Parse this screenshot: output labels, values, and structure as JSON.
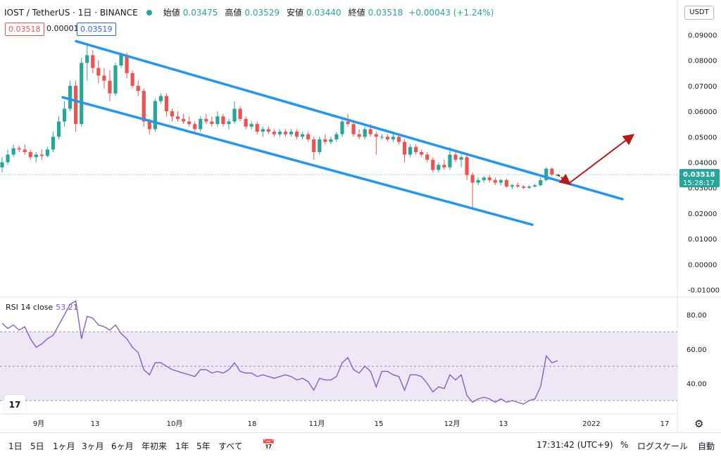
{
  "header": {
    "symbol": "IOST / TetherUS · 1日 · BINANCE",
    "open_label": "始値",
    "open_value": "0.03475",
    "high_label": "高値",
    "high_value": "0.03529",
    "low_label": "安値",
    "low_value": "0.03440",
    "close_label": "終値",
    "close_value": "0.03518",
    "change": "+0.00043 (+1.24%)",
    "sell_price": "0.03518",
    "spread": "0.00001",
    "buy_price": "0.03519"
  },
  "price_axis": {
    "currency": "USDT",
    "top_label": "0",
    "last_price_label": "0.03518",
    "countdown": "15:28:17"
  },
  "rsi": {
    "label": "RSI 14 close",
    "value": "53.21"
  },
  "colors": {
    "up": "#26a69a",
    "down": "#ef5350",
    "channel": "#2196f3",
    "arrow": "#b71c1c",
    "rsi_line": "#7e57c2",
    "rsi_band": "#ede7f6"
  },
  "bottom_bar": {
    "ranges": [
      "1日",
      "5日",
      "1ヶ月",
      "3ヶ月",
      "6ヶ月",
      "年初来",
      "1年",
      "5年",
      "すべて"
    ],
    "time": "17:31:42 (UTC+9)",
    "percent": "%",
    "log_scale": "ログスケール",
    "auto": "自動"
  },
  "chart_data": [
    {
      "type": "candlestick",
      "title": "IOST / TetherUS · 1日 · BINANCE",
      "x_axis_ticks": [
        "9月",
        "13",
        "10月",
        "18",
        "11月",
        "15",
        "12月",
        "13",
        "2022",
        "17"
      ],
      "y_axis_ticks": [
        0.09,
        0.08,
        0.07,
        0.06,
        0.05,
        0.04,
        0.03,
        0.02,
        0.01,
        0.0,
        -0.01
      ],
      "y_axis_tick_labels": [
        "0.09000",
        "0.08000",
        "0.07000",
        "0.06000",
        "0.05000",
        "0.04000",
        "0.03000",
        "0.02000",
        "0.01000",
        "0.00000",
        "-0.01000"
      ],
      "ylim": [
        -0.012,
        0.1
      ],
      "last_price": 0.03518,
      "ohlc": [
        [
          0.038,
          0.042,
          0.036,
          0.04
        ],
        [
          0.04,
          0.045,
          0.039,
          0.043
        ],
        [
          0.043,
          0.047,
          0.042,
          0.0455
        ],
        [
          0.0455,
          0.0465,
          0.044,
          0.045
        ],
        [
          0.045,
          0.047,
          0.043,
          0.044
        ],
        [
          0.044,
          0.045,
          0.041,
          0.042
        ],
        [
          0.042,
          0.044,
          0.04,
          0.043
        ],
        [
          0.043,
          0.045,
          0.041,
          0.0425
        ],
        [
          0.0425,
          0.046,
          0.042,
          0.045
        ],
        [
          0.045,
          0.052,
          0.044,
          0.05
        ],
        [
          0.05,
          0.058,
          0.049,
          0.056
        ],
        [
          0.056,
          0.064,
          0.054,
          0.061
        ],
        [
          0.061,
          0.072,
          0.06,
          0.07
        ],
        [
          0.07,
          0.072,
          0.052,
          0.055
        ],
        [
          0.055,
          0.081,
          0.054,
          0.079
        ],
        [
          0.079,
          0.086,
          0.072,
          0.082
        ],
        [
          0.082,
          0.084,
          0.075,
          0.077
        ],
        [
          0.077,
          0.08,
          0.071,
          0.074
        ],
        [
          0.074,
          0.077,
          0.069,
          0.072
        ],
        [
          0.072,
          0.076,
          0.064,
          0.067
        ],
        [
          0.067,
          0.079,
          0.066,
          0.078
        ],
        [
          0.078,
          0.083,
          0.077,
          0.082
        ],
        [
          0.082,
          0.083,
          0.073,
          0.075
        ],
        [
          0.075,
          0.076,
          0.069,
          0.07
        ],
        [
          0.07,
          0.072,
          0.066,
          0.068
        ],
        [
          0.068,
          0.069,
          0.054,
          0.056
        ],
        [
          0.056,
          0.057,
          0.051,
          0.053
        ],
        [
          0.053,
          0.065,
          0.052,
          0.064
        ],
        [
          0.064,
          0.067,
          0.063,
          0.066
        ],
        [
          0.066,
          0.067,
          0.058,
          0.06
        ],
        [
          0.06,
          0.061,
          0.056,
          0.058
        ],
        [
          0.058,
          0.06,
          0.056,
          0.057
        ],
        [
          0.057,
          0.059,
          0.055,
          0.056
        ],
        [
          0.056,
          0.058,
          0.054,
          0.055
        ],
        [
          0.055,
          0.056,
          0.052,
          0.053
        ],
        [
          0.053,
          0.058,
          0.052,
          0.057
        ],
        [
          0.057,
          0.059,
          0.055,
          0.056
        ],
        [
          0.056,
          0.058,
          0.054,
          0.055
        ],
        [
          0.055,
          0.06,
          0.054,
          0.058
        ],
        [
          0.058,
          0.059,
          0.054,
          0.055
        ],
        [
          0.055,
          0.057,
          0.053,
          0.056
        ],
        [
          0.056,
          0.064,
          0.055,
          0.061
        ],
        [
          0.061,
          0.062,
          0.056,
          0.057
        ],
        [
          0.057,
          0.058,
          0.053,
          0.054
        ],
        [
          0.054,
          0.056,
          0.053,
          0.055
        ],
        [
          0.055,
          0.056,
          0.051,
          0.052
        ],
        [
          0.052,
          0.054,
          0.05,
          0.053
        ],
        [
          0.053,
          0.054,
          0.051,
          0.052
        ],
        [
          0.052,
          0.053,
          0.05,
          0.051
        ],
        [
          0.051,
          0.053,
          0.05,
          0.052
        ],
        [
          0.052,
          0.053,
          0.05,
          0.051
        ],
        [
          0.051,
          0.053,
          0.05,
          0.052
        ],
        [
          0.052,
          0.053,
          0.049,
          0.05
        ],
        [
          0.05,
          0.052,
          0.049,
          0.051
        ],
        [
          0.051,
          0.052,
          0.048,
          0.049
        ],
        [
          0.049,
          0.05,
          0.041,
          0.044
        ],
        [
          0.044,
          0.05,
          0.043,
          0.049
        ],
        [
          0.049,
          0.051,
          0.047,
          0.048
        ],
        [
          0.048,
          0.05,
          0.047,
          0.049
        ],
        [
          0.049,
          0.052,
          0.048,
          0.051
        ],
        [
          0.051,
          0.057,
          0.05,
          0.056
        ],
        [
          0.056,
          0.059,
          0.054,
          0.055
        ],
        [
          0.055,
          0.056,
          0.05,
          0.051
        ],
        [
          0.051,
          0.053,
          0.049,
          0.05
        ],
        [
          0.05,
          0.054,
          0.049,
          0.053
        ],
        [
          0.053,
          0.055,
          0.05,
          0.051
        ],
        [
          0.051,
          0.052,
          0.043,
          0.05
        ],
        [
          0.05,
          0.051,
          0.049,
          0.05
        ],
        [
          0.05,
          0.051,
          0.048,
          0.049
        ],
        [
          0.049,
          0.052,
          0.048,
          0.05
        ],
        [
          0.05,
          0.051,
          0.047,
          0.048
        ],
        [
          0.048,
          0.049,
          0.04,
          0.043
        ],
        [
          0.043,
          0.047,
          0.042,
          0.046
        ],
        [
          0.046,
          0.047,
          0.043,
          0.044
        ],
        [
          0.044,
          0.045,
          0.042,
          0.043
        ],
        [
          0.043,
          0.044,
          0.04,
          0.041
        ],
        [
          0.041,
          0.042,
          0.036,
          0.037
        ],
        [
          0.037,
          0.04,
          0.036,
          0.039
        ],
        [
          0.039,
          0.041,
          0.037,
          0.038
        ],
        [
          0.038,
          0.046,
          0.037,
          0.043
        ],
        [
          0.043,
          0.044,
          0.04,
          0.041
        ],
        [
          0.041,
          0.043,
          0.038,
          0.042
        ],
        [
          0.042,
          0.043,
          0.033,
          0.035
        ],
        [
          0.035,
          0.036,
          0.022,
          0.032
        ],
        [
          0.032,
          0.034,
          0.031,
          0.033
        ],
        [
          0.033,
          0.0345,
          0.032,
          0.034
        ],
        [
          0.034,
          0.035,
          0.032,
          0.033
        ],
        [
          0.033,
          0.034,
          0.031,
          0.032
        ],
        [
          0.032,
          0.0335,
          0.031,
          0.033
        ],
        [
          0.033,
          0.0335,
          0.03,
          0.0305
        ],
        [
          0.0305,
          0.0315,
          0.0295,
          0.031
        ],
        [
          0.031,
          0.032,
          0.03,
          0.0305
        ],
        [
          0.0305,
          0.031,
          0.0295,
          0.03
        ],
        [
          0.03,
          0.031,
          0.0295,
          0.0305
        ],
        [
          0.0305,
          0.0315,
          0.03,
          0.031
        ],
        [
          0.031,
          0.034,
          0.0305,
          0.033
        ],
        [
          0.033,
          0.038,
          0.0325,
          0.0375
        ],
        [
          0.0375,
          0.038,
          0.0345,
          0.0352
        ],
        [
          0.03475,
          0.03529,
          0.0344,
          0.03518
        ]
      ],
      "overlays": {
        "channel_upper": {
          "from": [
            0.0875
          ],
          "to": [
            0.0255
          ]
        },
        "channel_lower": {
          "from": [
            0.0655
          ],
          "to": [
            0.0155
          ]
        },
        "drawn_arrow_up_to": 0.0505,
        "drawn_arrow_down_to": 0.0317
      }
    },
    {
      "type": "line",
      "title": "RSI 14 close",
      "y_axis_ticks": [
        80,
        60,
        40
      ],
      "y_axis_tick_labels": [
        "80.00",
        "60.00",
        "40.00"
      ],
      "ylim": [
        22,
        92
      ],
      "bands": {
        "upper": 70,
        "middle": 50,
        "lower": 30
      },
      "series": [
        {
          "name": "RSI 14 close",
          "values": [
            75,
            72,
            74,
            71,
            73,
            66,
            61,
            63,
            66,
            68,
            74,
            80,
            86,
            88,
            66,
            79,
            78,
            74,
            73,
            71,
            74,
            69,
            66,
            61,
            58,
            48,
            45,
            52,
            52,
            50,
            48,
            47,
            46,
            45,
            44,
            48,
            48,
            46,
            47,
            46,
            48,
            52,
            47,
            46,
            46,
            44,
            45,
            44,
            43,
            44,
            45,
            44,
            42,
            43,
            41,
            36,
            43,
            42,
            42,
            44,
            52,
            55,
            48,
            46,
            50,
            47,
            38,
            47,
            47,
            45,
            44,
            36,
            45,
            45,
            44,
            40,
            35,
            38,
            37,
            45,
            42,
            45,
            33,
            29,
            31,
            32,
            31,
            29,
            31,
            29,
            30,
            29,
            28,
            30,
            31,
            38,
            56,
            52,
            53.21
          ]
        }
      ]
    }
  ]
}
